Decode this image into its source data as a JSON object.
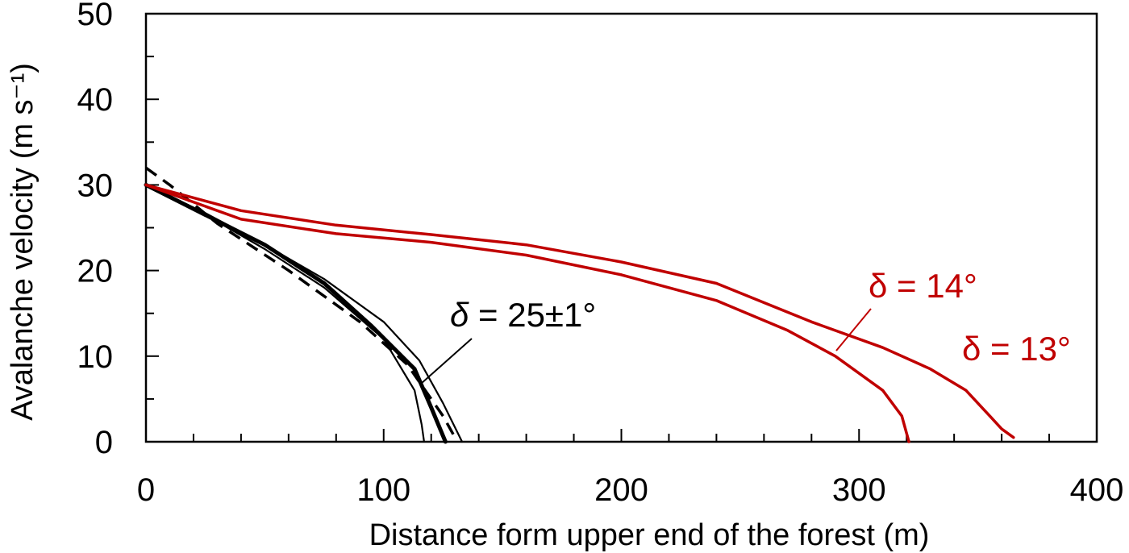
{
  "chart_data": {
    "type": "line",
    "xlabel": "Distance form upper end of the forest (m)",
    "ylabel": "Avalanche velocity (m s⁻¹)",
    "xlim": [
      0,
      400
    ],
    "ylim": [
      0,
      50
    ],
    "x_ticks": [
      "0",
      "100",
      "200",
      "300",
      "400"
    ],
    "y_ticks": [
      "0",
      "10",
      "20",
      "30",
      "40",
      "50"
    ],
    "x_minor_step": 20,
    "y_minor_step": 5,
    "grid": false,
    "legend": "none",
    "series": [
      {
        "color": "#000000",
        "style": "solid",
        "weight": "thin",
        "points": [
          [
            0,
            30
          ],
          [
            25,
            26.5
          ],
          [
            50,
            22.5
          ],
          [
            75,
            18
          ],
          [
            100,
            12
          ],
          [
            113,
            6
          ],
          [
            116,
            2
          ],
          [
            117,
            0
          ]
        ]
      },
      {
        "color": "#000000",
        "style": "solid",
        "weight": "bold",
        "points": [
          [
            0,
            30
          ],
          [
            25,
            26.5
          ],
          [
            50,
            23
          ],
          [
            75,
            18.5
          ],
          [
            95,
            13.5
          ],
          [
            113,
            8.5
          ],
          [
            120,
            4
          ],
          [
            126,
            0
          ]
        ]
      },
      {
        "color": "#000000",
        "style": "solid",
        "weight": "thin",
        "points": [
          [
            0,
            30
          ],
          [
            25,
            26.7
          ],
          [
            50,
            23
          ],
          [
            75,
            19
          ],
          [
            100,
            14
          ],
          [
            115,
            9.5
          ],
          [
            125,
            4.5
          ],
          [
            133,
            0
          ]
        ]
      },
      {
        "color": "#000000",
        "style": "dashed",
        "weight": "medium",
        "points": [
          [
            0,
            32
          ],
          [
            10,
            30
          ],
          [
            30,
            25.5
          ],
          [
            60,
            20
          ],
          [
            90,
            14
          ],
          [
            110,
            9
          ],
          [
            125,
            3
          ],
          [
            130,
            0.5
          ]
        ]
      },
      {
        "color": "#c00000",
        "style": "solid",
        "weight": "medium",
        "points": [
          [
            0,
            30
          ],
          [
            40,
            26
          ],
          [
            80,
            24.3
          ],
          [
            120,
            23.3
          ],
          [
            160,
            21.8
          ],
          [
            200,
            19.5
          ],
          [
            240,
            16.5
          ],
          [
            270,
            13
          ],
          [
            290,
            10
          ],
          [
            310,
            6
          ],
          [
            318,
            3
          ],
          [
            321,
            0
          ]
        ]
      },
      {
        "color": "#c00000",
        "style": "solid",
        "weight": "medium",
        "points": [
          [
            0,
            30
          ],
          [
            40,
            27
          ],
          [
            80,
            25.3
          ],
          [
            120,
            24.2
          ],
          [
            160,
            23
          ],
          [
            200,
            21
          ],
          [
            240,
            18.5
          ],
          [
            280,
            14
          ],
          [
            310,
            11
          ],
          [
            330,
            8.5
          ],
          [
            345,
            6
          ],
          [
            355,
            3
          ],
          [
            360,
            1.5
          ],
          [
            365,
            0.5
          ]
        ]
      }
    ],
    "annotations": [
      {
        "label_parts": [
          "δ",
          " = 25±1°"
        ],
        "color": "#000000"
      },
      {
        "label": "δ = 14°",
        "color": "#c00000"
      },
      {
        "label": "δ = 13°",
        "color": "#c00000"
      }
    ]
  }
}
